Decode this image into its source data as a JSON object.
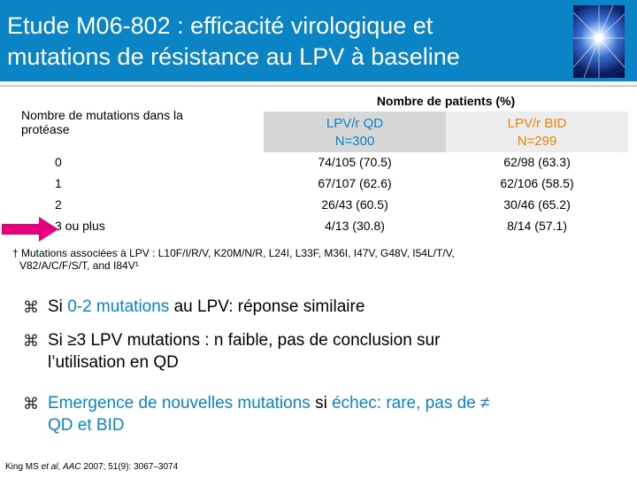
{
  "title": {
    "line1": "Etude M06-802 : efficacité virologique et",
    "line2": "mutations de résistance au LPV à baseline"
  },
  "logo": {
    "icon": "starburst-logo-icon"
  },
  "table": {
    "row_header": "Nombre de mutations dans la protéase",
    "group_header": "Nombre de patients (%)",
    "col_qd": {
      "line1": "LPV/r QD",
      "line2": "N=300"
    },
    "col_bid": {
      "line1": "LPV/r BID",
      "line2": "N=299"
    },
    "rows": [
      {
        "label": "0",
        "qd": "74/105  (70.5)",
        "bid": "62/98  (63.3)"
      },
      {
        "label": "1",
        "qd": "67/107  (62.6)",
        "bid": "62/106  (58.5)"
      },
      {
        "label": "2",
        "qd": "26/43  (60.5)",
        "bid": "30/46  (65.2)"
      },
      {
        "label": "3 ou plus",
        "qd": "4/13  (30.8)",
        "bid": "8/14  (57.1)"
      }
    ],
    "highlight_arrow": "arrow-right-icon"
  },
  "footnote": {
    "line1": "† Mutations associées à LPV : L10F/I/R/V, K20M/N/R, L24I, L33F, M36I, I47V, G48V, I54L/T/V,",
    "line2": "V82/A/C/F/S/T, and I84V¹"
  },
  "bullets": [
    {
      "marker": "⌘",
      "parts": [
        "Si ",
        "0-2 mutations",
        " au LPV: réponse similaire"
      ]
    },
    {
      "marker": "⌘",
      "parts": [
        "Si ≥3 LPV mutations : n faible, pas de conclusion sur",
        "l’utilisation en QD"
      ]
    },
    {
      "marker": "⌘",
      "parts": [
        "Emergence de nouvelles mutations",
        " si ",
        "échec: rare, pas de ≠",
        "QD et BID"
      ]
    }
  ],
  "reference": {
    "authors": "King MS ",
    "etal": "et al",
    "sep": ", ",
    "journal": "AAC",
    "rest": " 2007; 51(9): 3067–3074"
  },
  "colors": {
    "title_bar": "#0b84c6",
    "qd_header": "#0b84c6",
    "bid_header": "#e8860c",
    "arrow": "#e5007e"
  }
}
